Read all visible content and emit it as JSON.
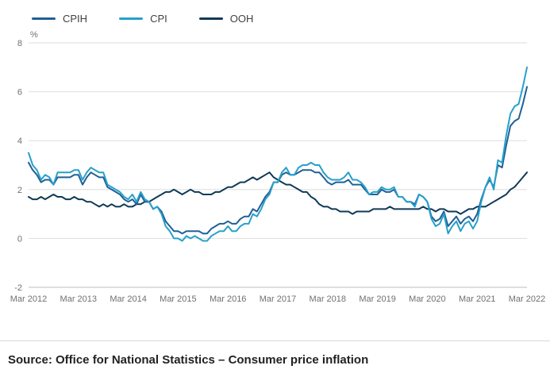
{
  "legend": [
    {
      "label": "CPIH",
      "color": "#206095"
    },
    {
      "label": "CPI",
      "color": "#27a0cc"
    },
    {
      "label": "OOH",
      "color": "#0f3a57"
    }
  ],
  "source": "Source: Office for National Statistics – Consumer price inflation",
  "chart_data": {
    "type": "line",
    "title": "",
    "unit_label": "%",
    "xlabel": "",
    "ylabel": "%",
    "ylim": [
      -2,
      8
    ],
    "y_ticks": [
      8,
      6,
      4,
      2,
      0,
      -2
    ],
    "grid": "horizontal",
    "legend_position": "top-left",
    "x_tick_labels": [
      "Mar 2012",
      "Mar 2013",
      "Mar 2014",
      "Mar 2015",
      "Mar 2016",
      "Mar 2017",
      "Mar 2018",
      "Mar 2019",
      "Mar 2020",
      "Mar 2021",
      "Mar 2022"
    ],
    "x_frequency": "monthly",
    "x_start": "Mar 2012",
    "x_end": "Mar 2022",
    "series": [
      {
        "name": "OOH",
        "color": "#0f3a57",
        "values": [
          1.7,
          1.6,
          1.6,
          1.7,
          1.6,
          1.7,
          1.8,
          1.7,
          1.7,
          1.6,
          1.6,
          1.7,
          1.6,
          1.6,
          1.5,
          1.5,
          1.4,
          1.3,
          1.4,
          1.3,
          1.4,
          1.3,
          1.3,
          1.4,
          1.3,
          1.3,
          1.4,
          1.4,
          1.5,
          1.5,
          1.6,
          1.7,
          1.8,
          1.9,
          1.9,
          2.0,
          1.9,
          1.8,
          1.9,
          2.0,
          1.9,
          1.9,
          1.8,
          1.8,
          1.8,
          1.9,
          1.9,
          2.0,
          2.1,
          2.1,
          2.2,
          2.3,
          2.3,
          2.4,
          2.5,
          2.4,
          2.5,
          2.6,
          2.7,
          2.5,
          2.4,
          2.3,
          2.2,
          2.2,
          2.1,
          2.0,
          1.9,
          1.9,
          1.7,
          1.6,
          1.4,
          1.3,
          1.3,
          1.2,
          1.2,
          1.1,
          1.1,
          1.1,
          1.0,
          1.1,
          1.1,
          1.1,
          1.1,
          1.2,
          1.2,
          1.2,
          1.2,
          1.3,
          1.2,
          1.2,
          1.2,
          1.2,
          1.2,
          1.2,
          1.2,
          1.3,
          1.2,
          1.2,
          1.1,
          1.2,
          1.2,
          1.1,
          1.1,
          1.1,
          1.0,
          1.1,
          1.2,
          1.2,
          1.3,
          1.3,
          1.3,
          1.4,
          1.5,
          1.6,
          1.7,
          1.8,
          2.0,
          2.1,
          2.3,
          2.5,
          2.7
        ]
      },
      {
        "name": "CPIH",
        "color": "#206095",
        "values": [
          3.1,
          2.8,
          2.6,
          2.3,
          2.4,
          2.4,
          2.2,
          2.5,
          2.5,
          2.5,
          2.5,
          2.6,
          2.6,
          2.2,
          2.5,
          2.7,
          2.6,
          2.5,
          2.5,
          2.1,
          2.0,
          1.9,
          1.8,
          1.6,
          1.5,
          1.6,
          1.4,
          1.8,
          1.5,
          1.5,
          1.2,
          1.3,
          1.1,
          0.7,
          0.5,
          0.3,
          0.3,
          0.2,
          0.3,
          0.3,
          0.3,
          0.3,
          0.2,
          0.2,
          0.4,
          0.5,
          0.6,
          0.6,
          0.7,
          0.6,
          0.6,
          0.8,
          0.9,
          0.9,
          1.2,
          1.1,
          1.4,
          1.7,
          1.9,
          2.3,
          2.3,
          2.6,
          2.7,
          2.6,
          2.6,
          2.7,
          2.8,
          2.8,
          2.8,
          2.7,
          2.7,
          2.5,
          2.3,
          2.2,
          2.3,
          2.3,
          2.3,
          2.4,
          2.2,
          2.2,
          2.2,
          2.0,
          1.8,
          1.8,
          1.8,
          2.0,
          1.9,
          1.9,
          2.0,
          1.7,
          1.7,
          1.5,
          1.5,
          1.4,
          1.8,
          1.7,
          1.5,
          0.9,
          0.7,
          0.8,
          1.1,
          0.5,
          0.7,
          0.9,
          0.6,
          0.8,
          0.9,
          0.7,
          1.0,
          1.6,
          2.1,
          2.4,
          2.1,
          3.0,
          2.9,
          3.8,
          4.6,
          4.8,
          4.9,
          5.5,
          6.2
        ]
      },
      {
        "name": "CPI",
        "color": "#27a0cc",
        "values": [
          3.5,
          3.0,
          2.8,
          2.4,
          2.6,
          2.5,
          2.2,
          2.7,
          2.7,
          2.7,
          2.7,
          2.8,
          2.8,
          2.4,
          2.7,
          2.9,
          2.8,
          2.7,
          2.7,
          2.2,
          2.1,
          2.0,
          1.9,
          1.7,
          1.6,
          1.8,
          1.5,
          1.9,
          1.6,
          1.5,
          1.2,
          1.3,
          1.0,
          0.5,
          0.3,
          0.0,
          0.0,
          -0.1,
          0.1,
          0.0,
          0.1,
          0.0,
          -0.1,
          -0.1,
          0.1,
          0.2,
          0.3,
          0.3,
          0.5,
          0.3,
          0.3,
          0.5,
          0.6,
          0.6,
          1.0,
          0.9,
          1.2,
          1.6,
          1.8,
          2.3,
          2.3,
          2.7,
          2.9,
          2.6,
          2.6,
          2.9,
          3.0,
          3.0,
          3.1,
          3.0,
          3.0,
          2.7,
          2.5,
          2.4,
          2.4,
          2.4,
          2.5,
          2.7,
          2.4,
          2.4,
          2.3,
          2.1,
          1.8,
          1.9,
          1.9,
          2.1,
          2.0,
          2.0,
          2.1,
          1.7,
          1.7,
          1.5,
          1.5,
          1.3,
          1.8,
          1.7,
          1.5,
          0.8,
          0.5,
          0.6,
          1.0,
          0.2,
          0.5,
          0.7,
          0.3,
          0.6,
          0.7,
          0.4,
          0.7,
          1.5,
          2.1,
          2.5,
          2.0,
          3.2,
          3.1,
          4.2,
          5.1,
          5.4,
          5.5,
          6.2,
          7.0
        ]
      }
    ]
  }
}
